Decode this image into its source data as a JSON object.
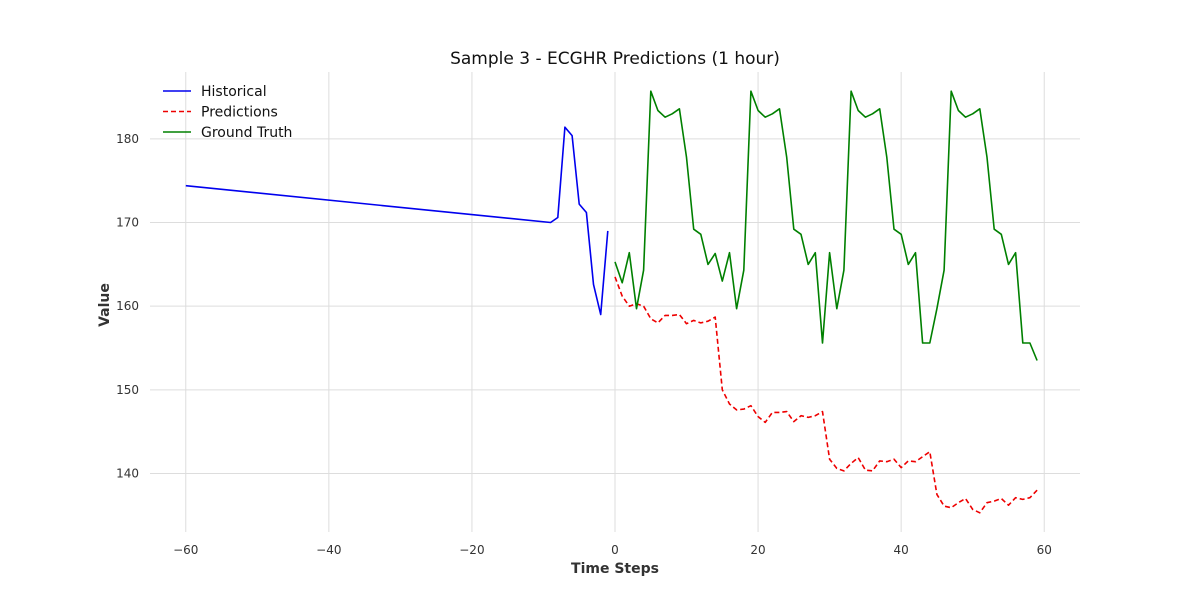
{
  "chart_data": {
    "type": "line",
    "title": "Sample 3 - ECGHR Predictions (1 hour)",
    "xlabel": "Time Steps",
    "ylabel": "Value",
    "xlim": [
      -65,
      65
    ],
    "ylim": [
      133,
      188
    ],
    "xticks": [
      -60,
      -40,
      -20,
      0,
      20,
      40,
      60
    ],
    "yticks": [
      140,
      150,
      160,
      170,
      180
    ],
    "grid": true,
    "legend_position": "top-left",
    "series": [
      {
        "name": "Historical",
        "color": "#0000ee",
        "style": "solid",
        "points": [
          [
            -60,
            174.4
          ],
          [
            -9,
            170.0
          ],
          [
            -8,
            170.6
          ],
          [
            -7,
            181.4
          ],
          [
            -6,
            180.4
          ],
          [
            -5,
            172.2
          ],
          [
            -4,
            171.2
          ],
          [
            -3,
            162.6
          ],
          [
            -2,
            159.0
          ],
          [
            -1,
            169.0
          ]
        ]
      },
      {
        "name": "Predictions",
        "color": "#ee0000",
        "style": "dashed",
        "points": [
          [
            0,
            163.5
          ],
          [
            1,
            161.2
          ],
          [
            2,
            160.0
          ],
          [
            3,
            160.3
          ],
          [
            4,
            160.0
          ],
          [
            5,
            158.5
          ],
          [
            6,
            158.0
          ],
          [
            7,
            158.9
          ],
          [
            8,
            158.9
          ],
          [
            9,
            159.0
          ],
          [
            10,
            157.9
          ],
          [
            11,
            158.3
          ],
          [
            12,
            158.0
          ],
          [
            13,
            158.2
          ],
          [
            14,
            158.7
          ],
          [
            15,
            150.0
          ],
          [
            16,
            148.3
          ],
          [
            17,
            147.6
          ],
          [
            18,
            147.7
          ],
          [
            19,
            148.1
          ],
          [
            20,
            146.8
          ],
          [
            21,
            146.1
          ],
          [
            22,
            147.3
          ],
          [
            23,
            147.3
          ],
          [
            24,
            147.4
          ],
          [
            25,
            146.2
          ],
          [
            26,
            146.9
          ],
          [
            27,
            146.7
          ],
          [
            28,
            146.9
          ],
          [
            29,
            147.4
          ],
          [
            30,
            141.7
          ],
          [
            31,
            140.6
          ],
          [
            32,
            140.3
          ],
          [
            33,
            141.2
          ],
          [
            34,
            141.9
          ],
          [
            35,
            140.4
          ],
          [
            36,
            140.3
          ],
          [
            37,
            141.5
          ],
          [
            38,
            141.4
          ],
          [
            39,
            141.7
          ],
          [
            40,
            140.7
          ],
          [
            41,
            141.5
          ],
          [
            42,
            141.4
          ],
          [
            43,
            142.0
          ],
          [
            44,
            142.6
          ],
          [
            45,
            137.5
          ],
          [
            46,
            136.1
          ],
          [
            47,
            135.9
          ],
          [
            48,
            136.5
          ],
          [
            49,
            137.0
          ],
          [
            50,
            135.7
          ],
          [
            51,
            135.3
          ],
          [
            52,
            136.5
          ],
          [
            53,
            136.7
          ],
          [
            54,
            137.0
          ],
          [
            55,
            136.2
          ],
          [
            56,
            137.1
          ],
          [
            57,
            136.9
          ],
          [
            58,
            137.1
          ],
          [
            59,
            138.0
          ]
        ]
      },
      {
        "name": "Ground Truth",
        "color": "#008000",
        "style": "solid",
        "points": [
          [
            0,
            165.3
          ],
          [
            1,
            162.8
          ],
          [
            2,
            166.4
          ],
          [
            3,
            159.7
          ],
          [
            4,
            164.3
          ],
          [
            5,
            185.7
          ],
          [
            6,
            183.4
          ],
          [
            7,
            182.6
          ],
          [
            8,
            183.0
          ],
          [
            9,
            183.6
          ],
          [
            10,
            177.8
          ],
          [
            11,
            169.2
          ],
          [
            12,
            168.6
          ],
          [
            13,
            165.0
          ],
          [
            14,
            166.3
          ],
          [
            15,
            163.0
          ],
          [
            16,
            166.4
          ],
          [
            17,
            159.7
          ],
          [
            18,
            164.3
          ],
          [
            19,
            185.7
          ],
          [
            20,
            183.4
          ],
          [
            21,
            182.6
          ],
          [
            22,
            183.0
          ],
          [
            23,
            183.6
          ],
          [
            24,
            177.8
          ],
          [
            25,
            169.2
          ],
          [
            26,
            168.6
          ],
          [
            27,
            165.0
          ],
          [
            28,
            166.4
          ],
          [
            29,
            155.6
          ],
          [
            30,
            166.4
          ],
          [
            31,
            159.7
          ],
          [
            32,
            164.3
          ],
          [
            33,
            185.7
          ],
          [
            34,
            183.4
          ],
          [
            35,
            182.6
          ],
          [
            36,
            183.0
          ],
          [
            37,
            183.6
          ],
          [
            38,
            177.8
          ],
          [
            39,
            169.2
          ],
          [
            40,
            168.6
          ],
          [
            41,
            165.0
          ],
          [
            42,
            166.4
          ],
          [
            43,
            155.6
          ],
          [
            44,
            155.6
          ],
          [
            45,
            159.7
          ],
          [
            46,
            164.3
          ],
          [
            47,
            185.7
          ],
          [
            48,
            183.4
          ],
          [
            49,
            182.6
          ],
          [
            50,
            183.0
          ],
          [
            51,
            183.6
          ],
          [
            52,
            177.8
          ],
          [
            53,
            169.2
          ],
          [
            54,
            168.6
          ],
          [
            55,
            165.0
          ],
          [
            56,
            166.4
          ],
          [
            57,
            155.6
          ],
          [
            58,
            155.6
          ],
          [
            59,
            153.5
          ]
        ]
      }
    ]
  }
}
